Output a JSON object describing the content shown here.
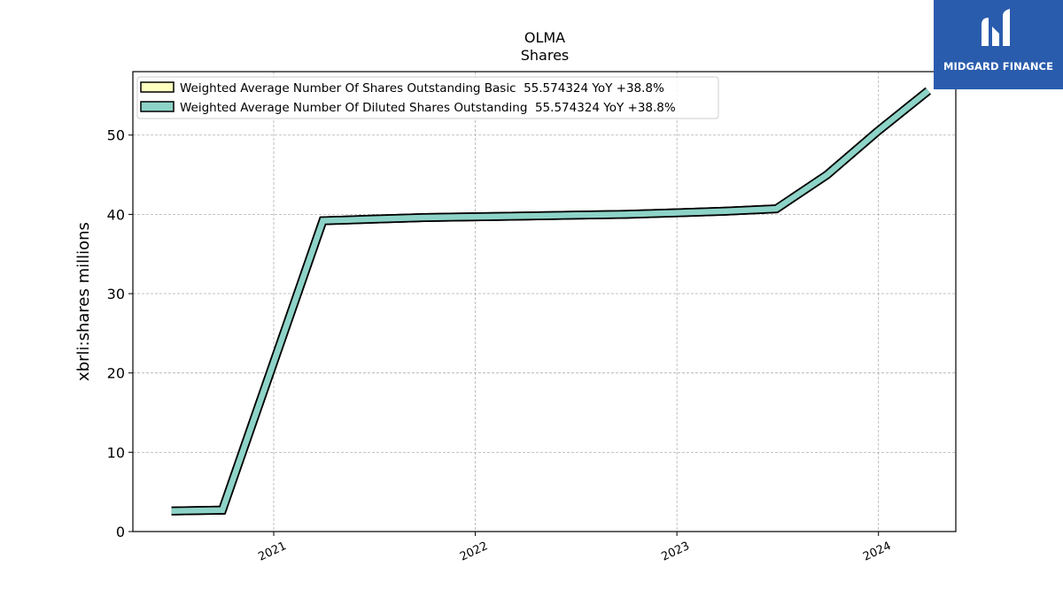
{
  "logo": {
    "text": "MIDGARD FINANCE",
    "bg_color": "#2a5cad"
  },
  "chart_data": {
    "type": "line",
    "title": "OLMA",
    "subtitle": "Shares",
    "xlabel": "",
    "ylabel": "xbrli:shares millions",
    "ylim": [
      0,
      58
    ],
    "xlim": [
      "2020-04-21",
      "2024-05-20"
    ],
    "yticks": [
      0,
      10,
      20,
      30,
      40,
      50
    ],
    "xticks": [
      {
        "label": "2021",
        "date": "2021-01-01"
      },
      {
        "label": "2022",
        "date": "2022-01-01"
      },
      {
        "label": "2023",
        "date": "2023-01-01"
      },
      {
        "label": "2024",
        "date": "2024-01-01"
      }
    ],
    "grid": true,
    "legend_position": "top-left",
    "series": [
      {
        "name": "Weighted Average Number Of Shares Outstanding Basic  55.574324 YoY +38.8%",
        "color": "#ffffc0",
        "points": [
          [
            "2020-06-30",
            2.6
          ],
          [
            "2020-09-30",
            2.7
          ],
          [
            "2021-03-31",
            39.2
          ],
          [
            "2021-06-30",
            39.4
          ],
          [
            "2021-09-30",
            39.6
          ],
          [
            "2021-12-31",
            39.7
          ],
          [
            "2022-03-31",
            39.8
          ],
          [
            "2022-06-30",
            39.9
          ],
          [
            "2022-09-30",
            40.0
          ],
          [
            "2022-12-31",
            40.2
          ],
          [
            "2023-03-31",
            40.4
          ],
          [
            "2023-06-30",
            40.7
          ],
          [
            "2023-09-30",
            45.0
          ],
          [
            "2023-12-31",
            50.5
          ],
          [
            "2024-03-31",
            55.574324
          ]
        ]
      },
      {
        "name": "Weighted Average Number Of Diluted Shares Outstanding  55.574324 YoY +38.8%",
        "color": "#8dd3c7",
        "points": [
          [
            "2020-06-30",
            2.6
          ],
          [
            "2020-09-30",
            2.7
          ],
          [
            "2021-03-31",
            39.2
          ],
          [
            "2021-06-30",
            39.4
          ],
          [
            "2021-09-30",
            39.6
          ],
          [
            "2021-12-31",
            39.7
          ],
          [
            "2022-03-31",
            39.8
          ],
          [
            "2022-06-30",
            39.9
          ],
          [
            "2022-09-30",
            40.0
          ],
          [
            "2022-12-31",
            40.2
          ],
          [
            "2023-03-31",
            40.4
          ],
          [
            "2023-06-30",
            40.7
          ],
          [
            "2023-09-30",
            45.0
          ],
          [
            "2023-12-31",
            50.5
          ],
          [
            "2024-03-31",
            55.574324
          ]
        ]
      }
    ]
  }
}
